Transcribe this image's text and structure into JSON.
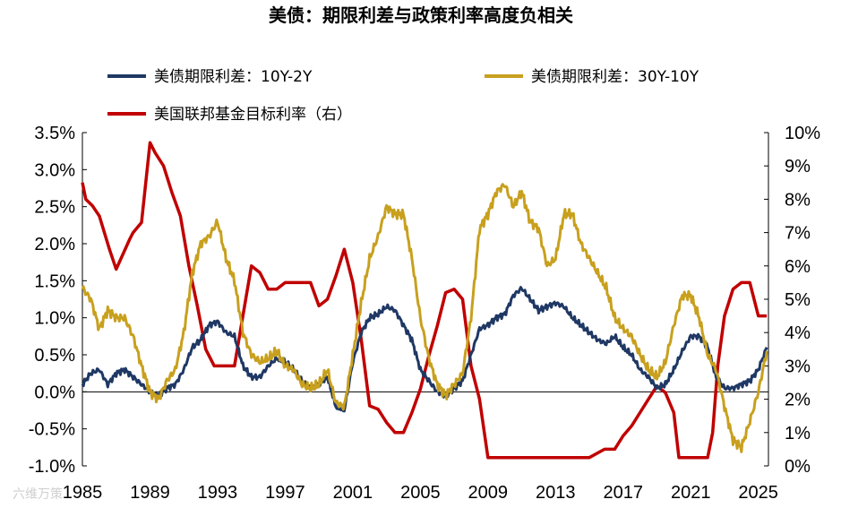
{
  "watermark": "六维万策",
  "chart_data": {
    "type": "line",
    "title": "美债：期限利差与政策利率高度负相关",
    "legend_position": "top",
    "grid": false,
    "x_range": [
      1985,
      2025.6
    ],
    "x_ticks": [
      "1985",
      "1989",
      "1993",
      "1997",
      "2001",
      "2005",
      "2009",
      "2013",
      "2017",
      "2021",
      "2025"
    ],
    "y_left": {
      "range": [
        -1.0,
        3.5
      ],
      "ticks": [
        "-1.0%",
        "-0.5%",
        "0.0%",
        "0.5%",
        "1.0%",
        "1.5%",
        "2.0%",
        "2.5%",
        "3.0%",
        "3.5%"
      ]
    },
    "y_right": {
      "range": [
        0,
        10
      ],
      "ticks": [
        "0%",
        "1%",
        "2%",
        "3%",
        "4%",
        "5%",
        "6%",
        "7%",
        "8%",
        "9%",
        "10%"
      ]
    },
    "series": [
      {
        "name": "美债期限利差：10Y-2Y",
        "color": "#1f3864",
        "axis": "left",
        "x": [
          1985.0,
          1985.5,
          1986.0,
          1986.5,
          1987.0,
          1987.5,
          1988.0,
          1988.5,
          1989.0,
          1989.5,
          1990.0,
          1990.5,
          1991.0,
          1991.5,
          1992.0,
          1992.5,
          1993.0,
          1993.5,
          1994.0,
          1994.5,
          1995.0,
          1995.5,
          1996.0,
          1996.5,
          1997.0,
          1997.5,
          1998.0,
          1998.5,
          1999.0,
          1999.5,
          2000.0,
          2000.5,
          2001.0,
          2001.5,
          2002.0,
          2002.5,
          2003.0,
          2003.5,
          2004.0,
          2004.5,
          2005.0,
          2005.5,
          2006.0,
          2006.5,
          2007.0,
          2007.5,
          2008.0,
          2008.5,
          2009.0,
          2009.5,
          2010.0,
          2010.5,
          2011.0,
          2011.5,
          2012.0,
          2012.5,
          2013.0,
          2013.5,
          2014.0,
          2014.5,
          2015.0,
          2015.5,
          2016.0,
          2016.5,
          2017.0,
          2017.5,
          2018.0,
          2018.5,
          2019.0,
          2019.5,
          2020.0,
          2020.5,
          2021.0,
          2021.5,
          2022.0,
          2022.5,
          2023.0,
          2023.5,
          2024.0,
          2024.5,
          2025.0,
          2025.5
        ],
        "y": [
          0.1,
          0.25,
          0.3,
          0.1,
          0.25,
          0.3,
          0.2,
          0.1,
          0.0,
          -0.05,
          0.05,
          0.1,
          0.3,
          0.6,
          0.7,
          0.9,
          0.95,
          0.8,
          0.75,
          0.35,
          0.2,
          0.2,
          0.35,
          0.45,
          0.4,
          0.3,
          0.15,
          0.05,
          0.1,
          0.2,
          -0.2,
          -0.25,
          0.4,
          0.8,
          1.0,
          1.05,
          1.15,
          1.1,
          0.9,
          0.7,
          0.3,
          0.15,
          0.0,
          -0.05,
          0.05,
          0.15,
          0.5,
          0.85,
          0.9,
          1.0,
          1.05,
          1.3,
          1.4,
          1.25,
          1.1,
          1.15,
          1.2,
          1.15,
          1.0,
          0.9,
          0.8,
          0.7,
          0.65,
          0.75,
          0.6,
          0.5,
          0.3,
          0.2,
          0.05,
          0.1,
          0.3,
          0.55,
          0.75,
          0.75,
          0.6,
          0.2,
          0.05,
          0.05,
          0.1,
          0.15,
          0.3,
          0.6
        ]
      },
      {
        "name": "美债期限利差：30Y-10Y",
        "color": "#c8a01e",
        "axis": "left",
        "x": [
          1985.0,
          1985.5,
          1986.0,
          1986.5,
          1987.0,
          1987.5,
          1988.0,
          1988.5,
          1989.0,
          1989.5,
          1990.0,
          1990.5,
          1991.0,
          1991.5,
          1992.0,
          1992.5,
          1993.0,
          1993.5,
          1994.0,
          1994.5,
          1995.0,
          1995.5,
          1996.0,
          1996.5,
          1997.0,
          1997.5,
          1998.0,
          1998.5,
          1999.0,
          1999.5,
          2000.0,
          2000.5,
          2001.0,
          2001.5,
          2002.0,
          2002.5,
          2003.0,
          2003.5,
          2004.0,
          2004.5,
          2005.0,
          2005.5,
          2006.0,
          2006.5,
          2007.0,
          2007.5,
          2008.0,
          2008.5,
          2009.0,
          2009.5,
          2010.0,
          2010.5,
          2011.0,
          2011.5,
          2012.0,
          2012.5,
          2013.0,
          2013.5,
          2014.0,
          2014.5,
          2015.0,
          2015.5,
          2016.0,
          2016.5,
          2017.0,
          2017.5,
          2018.0,
          2018.5,
          2019.0,
          2019.5,
          2020.0,
          2020.5,
          2021.0,
          2021.5,
          2022.0,
          2022.5,
          2023.0,
          2023.5,
          2024.0,
          2024.5,
          2025.0,
          2025.5
        ],
        "y": [
          1.4,
          1.25,
          0.85,
          1.1,
          1.0,
          1.0,
          0.75,
          0.35,
          0.0,
          -0.1,
          0.15,
          0.3,
          0.8,
          1.6,
          2.0,
          2.1,
          2.3,
          1.8,
          1.5,
          0.8,
          0.5,
          0.4,
          0.45,
          0.55,
          0.35,
          0.3,
          0.1,
          0.05,
          0.1,
          0.3,
          -0.15,
          -0.2,
          0.5,
          1.2,
          1.8,
          2.1,
          2.5,
          2.4,
          2.4,
          1.8,
          1.0,
          0.45,
          0.1,
          -0.05,
          0.1,
          0.25,
          1.0,
          2.2,
          2.4,
          2.7,
          2.8,
          2.5,
          2.7,
          2.3,
          2.2,
          1.7,
          1.8,
          2.4,
          2.4,
          2.0,
          1.8,
          1.6,
          1.4,
          1.0,
          0.85,
          0.75,
          0.5,
          0.3,
          0.2,
          0.4,
          0.9,
          1.3,
          1.3,
          1.0,
          0.5,
          0.3,
          -0.2,
          -0.65,
          -0.75,
          -0.4,
          0.0,
          0.55
        ]
      },
      {
        "name": "美国联邦基金目标利率（右）",
        "color": "#c00000",
        "axis": "right",
        "x": [
          1985.0,
          1985.2,
          1985.6,
          1986.0,
          1986.6,
          1987.0,
          1987.8,
          1988.0,
          1988.5,
          1989.0,
          1989.3,
          1989.8,
          1990.3,
          1990.8,
          1991.3,
          1991.8,
          1992.3,
          1992.8,
          1993.5,
          1994.0,
          1994.5,
          1995.0,
          1995.5,
          1996.0,
          1996.5,
          1997.0,
          1997.5,
          1998.0,
          1998.5,
          1999.0,
          1999.5,
          2000.0,
          2000.5,
          2001.0,
          2001.5,
          2002.0,
          2002.5,
          2003.0,
          2003.5,
          2004.0,
          2004.5,
          2005.0,
          2005.5,
          2006.0,
          2006.5,
          2007.0,
          2007.5,
          2008.0,
          2008.5,
          2009.0,
          2010.0,
          2011.0,
          2012.0,
          2013.0,
          2014.0,
          2015.0,
          2015.9,
          2016.5,
          2017.0,
          2017.5,
          2018.0,
          2018.5,
          2019.0,
          2019.5,
          2020.0,
          2020.3,
          2021.0,
          2022.0,
          2022.3,
          2022.6,
          2023.0,
          2023.5,
          2024.0,
          2024.5,
          2025.0,
          2025.5
        ],
        "y": [
          8.5,
          8.0,
          7.8,
          7.5,
          6.5,
          5.9,
          6.8,
          7.0,
          7.3,
          9.7,
          9.4,
          9.0,
          8.2,
          7.5,
          6.0,
          4.8,
          3.5,
          3.0,
          3.0,
          3.0,
          4.5,
          6.0,
          5.8,
          5.3,
          5.3,
          5.5,
          5.5,
          5.5,
          5.5,
          4.8,
          5.0,
          5.7,
          6.5,
          5.5,
          3.8,
          1.8,
          1.7,
          1.3,
          1.0,
          1.0,
          1.6,
          2.3,
          3.3,
          4.2,
          5.2,
          5.3,
          5.0,
          3.0,
          2.0,
          0.25,
          0.25,
          0.25,
          0.25,
          0.25,
          0.25,
          0.25,
          0.5,
          0.5,
          0.9,
          1.2,
          1.6,
          2.0,
          2.4,
          2.2,
          1.6,
          0.25,
          0.25,
          0.25,
          1.0,
          3.0,
          4.5,
          5.3,
          5.5,
          5.5,
          4.5,
          4.5
        ]
      }
    ]
  }
}
